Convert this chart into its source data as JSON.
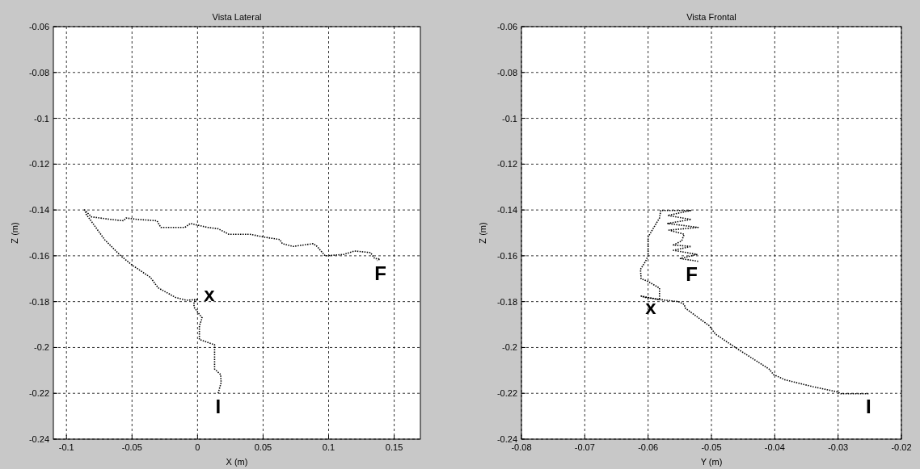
{
  "chart_data": [
    {
      "type": "line",
      "title": "Vista Lateral",
      "xlabel": "X (m)",
      "ylabel": "Z (m)",
      "xlim": [
        -0.11,
        0.17
      ],
      "ylim": [
        -0.24,
        -0.06
      ],
      "xticks": [
        -0.1,
        -0.05,
        0,
        0.05,
        0.1,
        0.15
      ],
      "yticks": [
        -0.24,
        -0.22,
        -0.2,
        -0.18,
        -0.16,
        -0.14,
        -0.12,
        -0.1,
        -0.08,
        -0.06
      ],
      "grid": true,
      "line_style": "dotted",
      "marker": "none",
      "series": [
        {
          "color": "#000000",
          "x": [
            0.0157,
            0.018,
            0.0176,
            0.013,
            0.013,
            0.0014,
            0.0014,
            0.0035,
            -0.0027,
            -0.0027,
            0.0004,
            -0.0084,
            -0.0167,
            -0.03,
            -0.036,
            -0.05,
            -0.0586,
            -0.0708,
            -0.085,
            -0.0861,
            -0.081,
            -0.0667,
            -0.0565,
            -0.0545,
            -0.0463,
            -0.031,
            -0.028,
            -0.0096,
            -0.0055,
            0.0076,
            0.0157,
            0.0239,
            0.04,
            0.0504,
            0.0627,
            0.0647,
            0.0729,
            0.0882,
            0.0912,
            0.0973,
            0.1116,
            0.1198,
            0.132,
            0.1351,
            0.1392,
            0.137
          ],
          "values": [
            -0.22,
            -0.2153,
            -0.2118,
            -0.2094,
            -0.1988,
            -0.1965,
            -0.1906,
            -0.1871,
            -0.1824,
            -0.18,
            -0.179,
            -0.1794,
            -0.1782,
            -0.174,
            -0.1694,
            -0.164,
            -0.16,
            -0.153,
            -0.1418,
            -0.14,
            -0.143,
            -0.1441,
            -0.1447,
            -0.1435,
            -0.1441,
            -0.1447,
            -0.1476,
            -0.1476,
            -0.1459,
            -0.1476,
            -0.1482,
            -0.1506,
            -0.1506,
            -0.1518,
            -0.1529,
            -0.1547,
            -0.1559,
            -0.1547,
            -0.1559,
            -0.16,
            -0.1594,
            -0.1579,
            -0.1586,
            -0.1612,
            -0.1614,
            -0.1621
          ]
        }
      ],
      "annotations": [
        {
          "text": "I",
          "x": 0.0157,
          "y": -0.22
        },
        {
          "text": "x",
          "x": 0.0004,
          "y": -0.179
        },
        {
          "text": "F",
          "x": 0.137,
          "y": -0.1621
        }
      ]
    },
    {
      "type": "line",
      "title": "Vista Frontal",
      "xlabel": "Y (m)",
      "ylabel": "Z (m)",
      "xlim": [
        -0.08,
        -0.02
      ],
      "ylim": [
        -0.24,
        -0.06
      ],
      "xticks": [
        -0.08,
        -0.07,
        -0.06,
        -0.05,
        -0.04,
        -0.03,
        -0.02
      ],
      "yticks": [
        -0.24,
        -0.22,
        -0.2,
        -0.18,
        -0.16,
        -0.14,
        -0.12,
        -0.1,
        -0.08,
        -0.06
      ],
      "grid": true,
      "line_style": "dotted",
      "marker": "none",
      "series": [
        {
          "color": "#000000",
          "x": [
            -0.0252,
            -0.0296,
            -0.0301,
            -0.034,
            -0.0384,
            -0.0402,
            -0.0409,
            -0.0459,
            -0.0494,
            -0.0503,
            -0.0541,
            -0.0543,
            -0.0552,
            -0.0582,
            -0.0604,
            -0.0611,
            -0.0582,
            -0.0582,
            -0.06,
            -0.0611,
            -0.0612,
            -0.0604,
            -0.06,
            -0.06,
            -0.0582,
            -0.058,
            -0.0532,
            -0.0569,
            -0.0532,
            -0.0569,
            -0.0521,
            -0.0567,
            -0.0543,
            -0.0547,
            -0.056,
            -0.0532,
            -0.056,
            -0.0523,
            -0.0549,
            -0.0521
          ],
          "values": [
            -0.2202,
            -0.2202,
            -0.2194,
            -0.2171,
            -0.2141,
            -0.2118,
            -0.2094,
            -0.2006,
            -0.1941,
            -0.1906,
            -0.1829,
            -0.1812,
            -0.18,
            -0.1791,
            -0.1782,
            -0.1776,
            -0.1791,
            -0.1741,
            -0.1712,
            -0.17,
            -0.1659,
            -0.1624,
            -0.16,
            -0.1518,
            -0.1435,
            -0.1402,
            -0.1402,
            -0.1424,
            -0.1441,
            -0.1459,
            -0.1476,
            -0.1488,
            -0.1506,
            -0.1535,
            -0.1553,
            -0.1559,
            -0.1576,
            -0.1594,
            -0.1612,
            -0.1624
          ]
        }
      ],
      "annotations": [
        {
          "text": "I",
          "x": -0.0252,
          "y": -0.2202
        },
        {
          "text": "x",
          "x": -0.0611,
          "y": -0.1776
        },
        {
          "text": "F",
          "x": -0.0521,
          "y": -0.1624
        }
      ]
    }
  ]
}
